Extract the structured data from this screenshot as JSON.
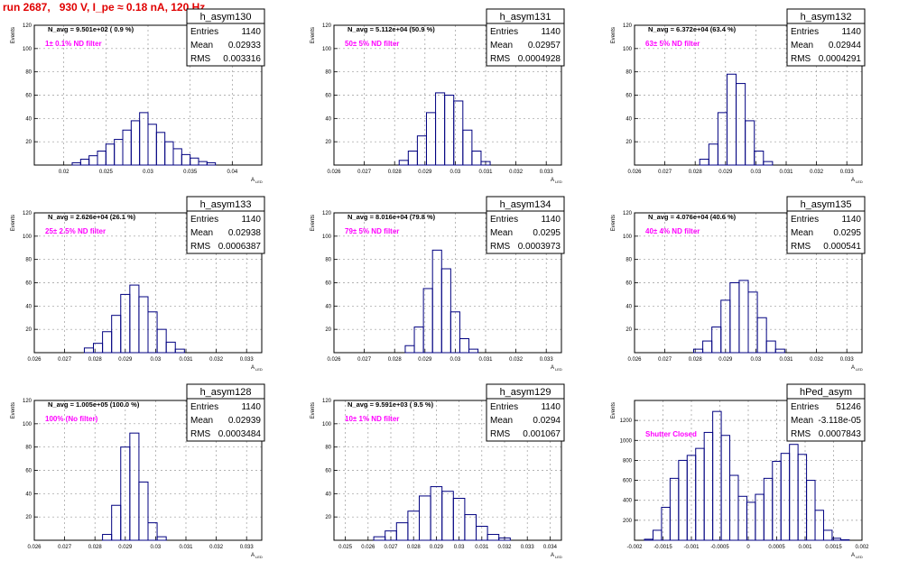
{
  "page_title": "run 2687,   930 V, I_pe ≈ 0.18 nA, 120 Hz",
  "stat_labels": {
    "entries": "Entries",
    "mean": "Mean",
    "rms": "RMS"
  },
  "ylabel": "Events",
  "xlabel_main": "A",
  "xlabel_sub": "LED",
  "colors": {
    "histogram": "#000080",
    "annotation": "#ff00ff",
    "title": "#e00000",
    "grid": "#9a9a9a"
  },
  "chart_data": [
    {
      "type": "bar",
      "name": "h_asym130",
      "n_avg": "N_avg = 9.501e+02 ( 0.9 %)",
      "filter": "1± 0.1% ND filter",
      "entries": "1140",
      "mean": "0.02933",
      "rms": "0.003316",
      "xlim": [
        0.0165,
        0.0435
      ],
      "ylim": [
        0,
        120
      ],
      "xticks": [
        0.02,
        0.025,
        0.03,
        0.035,
        0.04
      ],
      "xticklabels": [
        "0.02",
        "0.025",
        "0.03",
        "0.035",
        "0.04"
      ],
      "yticks": [
        20,
        40,
        60,
        80,
        100,
        120
      ],
      "yticklabels": [
        "20",
        "40",
        "60",
        "80",
        "100",
        "120"
      ],
      "bins": {
        "x": [
          0.0215,
          0.0225,
          0.0235,
          0.0245,
          0.0255,
          0.0265,
          0.0275,
          0.0285,
          0.0295,
          0.0305,
          0.0315,
          0.0325,
          0.0335,
          0.0345,
          0.0355,
          0.0365,
          0.0375
        ],
        "y": [
          2,
          5,
          8,
          12,
          18,
          22,
          30,
          38,
          45,
          35,
          28,
          20,
          14,
          9,
          6,
          3,
          2
        ]
      }
    },
    {
      "type": "bar",
      "name": "h_asym131",
      "n_avg": "N_avg = 5.112e+04 (50.9 %)",
      "filter": "50± 5% ND filter",
      "entries": "1140",
      "mean": "0.02957",
      "rms": "0.0004928",
      "xlim": [
        0.026,
        0.0335
      ],
      "ylim": [
        0,
        120
      ],
      "xticks": [
        0.026,
        0.027,
        0.028,
        0.029,
        0.03,
        0.031,
        0.032,
        0.033
      ],
      "xticklabels": [
        "0.026",
        "0.027",
        "0.028",
        "0.029",
        "0.03",
        "0.031",
        "0.032",
        "0.033"
      ],
      "yticks": [
        20,
        40,
        60,
        80,
        100,
        120
      ],
      "yticklabels": [
        "20",
        "40",
        "60",
        "80",
        "100",
        "120"
      ],
      "bins": {
        "x": [
          0.0283,
          0.0286,
          0.0289,
          0.0292,
          0.0295,
          0.0298,
          0.0301,
          0.0304,
          0.0307,
          0.031
        ],
        "y": [
          4,
          12,
          25,
          45,
          62,
          60,
          55,
          30,
          12,
          3
        ]
      }
    },
    {
      "type": "bar",
      "name": "h_asym132",
      "n_avg": "N_avg = 6.372e+04 (63.4 %)",
      "filter": "63± 5% ND filter",
      "entries": "1140",
      "mean": "0.02944",
      "rms": "0.0004291",
      "xlim": [
        0.026,
        0.0335
      ],
      "ylim": [
        0,
        120
      ],
      "xticks": [
        0.026,
        0.027,
        0.028,
        0.029,
        0.03,
        0.031,
        0.032,
        0.033
      ],
      "xticklabels": [
        "0.026",
        "0.027",
        "0.028",
        "0.029",
        "0.03",
        "0.031",
        "0.032",
        "0.033"
      ],
      "yticks": [
        20,
        40,
        60,
        80,
        100,
        120
      ],
      "yticklabels": [
        "20",
        "40",
        "60",
        "80",
        "100",
        "120"
      ],
      "bins": {
        "x": [
          0.0283,
          0.0286,
          0.0289,
          0.0292,
          0.0295,
          0.0298,
          0.0301,
          0.0304
        ],
        "y": [
          5,
          18,
          45,
          78,
          70,
          38,
          12,
          3
        ]
      }
    },
    {
      "type": "bar",
      "name": "h_asym133",
      "n_avg": "N_avg = 2.626e+04 (26.1 %)",
      "filter": "25± 2.5% ND filter",
      "entries": "1140",
      "mean": "0.02938",
      "rms": "0.0006387",
      "xlim": [
        0.026,
        0.0335
      ],
      "ylim": [
        0,
        120
      ],
      "xticks": [
        0.026,
        0.027,
        0.028,
        0.029,
        0.03,
        0.031,
        0.032,
        0.033
      ],
      "xticklabels": [
        "0.026",
        "0.027",
        "0.028",
        "0.029",
        "0.03",
        "0.031",
        "0.032",
        "0.033"
      ],
      "yticks": [
        20,
        40,
        60,
        80,
        100,
        120
      ],
      "yticklabels": [
        "20",
        "40",
        "60",
        "80",
        "100",
        "120"
      ],
      "bins": {
        "x": [
          0.0278,
          0.0281,
          0.0284,
          0.0287,
          0.029,
          0.0293,
          0.0296,
          0.0299,
          0.0302,
          0.0305,
          0.0308
        ],
        "y": [
          4,
          8,
          18,
          32,
          50,
          58,
          48,
          35,
          20,
          9,
          3
        ]
      }
    },
    {
      "type": "bar",
      "name": "h_asym134",
      "n_avg": "N_avg = 8.016e+04 (79.8 %)",
      "filter": "79± 5% ND filter",
      "entries": "1140",
      "mean": "0.0295",
      "rms": "0.0003973",
      "xlim": [
        0.026,
        0.0335
      ],
      "ylim": [
        0,
        120
      ],
      "xticks": [
        0.026,
        0.027,
        0.028,
        0.029,
        0.03,
        0.031,
        0.032,
        0.033
      ],
      "xticklabels": [
        "0.026",
        "0.027",
        "0.028",
        "0.029",
        "0.03",
        "0.031",
        "0.032",
        "0.033"
      ],
      "yticks": [
        20,
        40,
        60,
        80,
        100,
        120
      ],
      "yticklabels": [
        "20",
        "40",
        "60",
        "80",
        "100",
        "120"
      ],
      "bins": {
        "x": [
          0.0285,
          0.0288,
          0.0291,
          0.0294,
          0.0297,
          0.03,
          0.0303,
          0.0306
        ],
        "y": [
          6,
          22,
          55,
          88,
          72,
          35,
          12,
          3
        ]
      }
    },
    {
      "type": "bar",
      "name": "h_asym135",
      "n_avg": "N_avg = 4.076e+04 (40.6 %)",
      "filter": "40± 4% ND filter",
      "entries": "1140",
      "mean": "0.0295",
      "rms": "0.000541",
      "xlim": [
        0.026,
        0.0335
      ],
      "ylim": [
        0,
        120
      ],
      "xticks": [
        0.026,
        0.027,
        0.028,
        0.029,
        0.03,
        0.031,
        0.032,
        0.033
      ],
      "xticklabels": [
        "0.026",
        "0.027",
        "0.028",
        "0.029",
        "0.03",
        "0.031",
        "0.032",
        "0.033"
      ],
      "yticks": [
        20,
        40,
        60,
        80,
        100,
        120
      ],
      "yticklabels": [
        "20",
        "40",
        "60",
        "80",
        "100",
        "120"
      ],
      "bins": {
        "x": [
          0.0281,
          0.0284,
          0.0287,
          0.029,
          0.0293,
          0.0296,
          0.0299,
          0.0302,
          0.0305,
          0.0308
        ],
        "y": [
          3,
          10,
          22,
          45,
          60,
          62,
          52,
          30,
          10,
          3
        ]
      }
    },
    {
      "type": "bar",
      "name": "h_asym128",
      "n_avg": "N_avg = 1.005e+05 (100.0 %)",
      "filter": "100% (No filter)",
      "entries": "1140",
      "mean": "0.02939",
      "rms": "0.0003484",
      "xlim": [
        0.026,
        0.0335
      ],
      "ylim": [
        0,
        120
      ],
      "xticks": [
        0.026,
        0.027,
        0.028,
        0.029,
        0.03,
        0.031,
        0.032,
        0.033
      ],
      "xticklabels": [
        "0.026",
        "0.027",
        "0.028",
        "0.029",
        "0.03",
        "0.031",
        "0.032",
        "0.033"
      ],
      "yticks": [
        20,
        40,
        60,
        80,
        100,
        120
      ],
      "yticklabels": [
        "20",
        "40",
        "60",
        "80",
        "100",
        "120"
      ],
      "bins": {
        "x": [
          0.0284,
          0.0287,
          0.029,
          0.0293,
          0.0296,
          0.0299,
          0.0302
        ],
        "y": [
          5,
          30,
          80,
          92,
          50,
          15,
          3
        ]
      }
    },
    {
      "type": "bar",
      "name": "h_asym129",
      "n_avg": "N_avg = 9.591e+03 ( 9.5 %)",
      "filter": "10± 1% ND filter",
      "entries": "1140",
      "mean": "0.0294",
      "rms": "0.001067",
      "xlim": [
        0.0245,
        0.0345
      ],
      "ylim": [
        0,
        120
      ],
      "xticks": [
        0.025,
        0.026,
        0.027,
        0.028,
        0.029,
        0.03,
        0.031,
        0.032,
        0.033,
        0.034
      ],
      "xticklabels": [
        "0.025",
        "0.026",
        "0.027",
        "0.028",
        "0.029",
        "0.03",
        "0.031",
        "0.032",
        "0.033",
        "0.034"
      ],
      "yticks": [
        20,
        40,
        60,
        80,
        100,
        120
      ],
      "yticklabels": [
        "20",
        "40",
        "60",
        "80",
        "100",
        "120"
      ],
      "bins": {
        "x": [
          0.0265,
          0.027,
          0.0275,
          0.028,
          0.0285,
          0.029,
          0.0295,
          0.03,
          0.0305,
          0.031,
          0.0315,
          0.032
        ],
        "y": [
          3,
          8,
          15,
          25,
          38,
          46,
          42,
          36,
          22,
          12,
          5,
          2
        ]
      }
    },
    {
      "type": "bar",
      "name": "hPed_asym",
      "n_avg": "",
      "filter": "Shutter Closed",
      "entries": "51246",
      "mean": "-3.118e-05",
      "rms": "0.0007843",
      "xlim": [
        -0.002,
        0.002
      ],
      "ylim": [
        0,
        1400
      ],
      "xticks": [
        -0.002,
        -0.0015,
        -0.001,
        -0.0005,
        0,
        0.0005,
        0.001,
        0.0015,
        0.002
      ],
      "xticklabels": [
        "-0.002",
        "-0.0015",
        "-0.001",
        "-0.0005",
        "0",
        "0.0005",
        "0.001",
        "0.0015",
        "0.002"
      ],
      "yticks": [
        200,
        400,
        600,
        800,
        1000,
        1200
      ],
      "yticklabels": [
        "200",
        "400",
        "600",
        "800",
        "1000",
        "1200"
      ],
      "bins": {
        "x": [
          -0.00175,
          -0.0016,
          -0.00145,
          -0.0013,
          -0.00115,
          -0.001,
          -0.00085,
          -0.0007,
          -0.00055,
          -0.0004,
          -0.00025,
          -0.0001,
          5e-05,
          0.0002,
          0.00035,
          0.0005,
          0.00065,
          0.0008,
          0.00095,
          0.0011,
          0.00125,
          0.0014,
          0.00155,
          0.0017
        ],
        "y": [
          10,
          100,
          330,
          620,
          800,
          850,
          920,
          1080,
          1290,
          1050,
          650,
          440,
          380,
          460,
          620,
          790,
          870,
          960,
          860,
          600,
          300,
          100,
          20,
          5
        ]
      }
    }
  ]
}
